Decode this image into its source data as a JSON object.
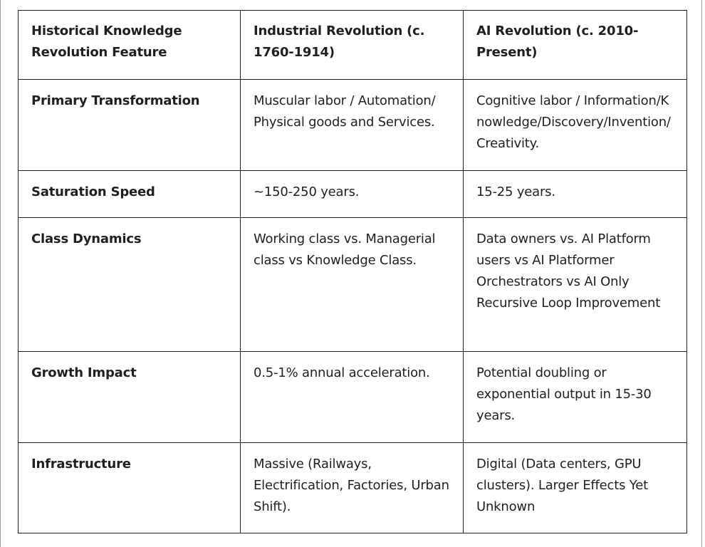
{
  "table": {
    "header": {
      "feature": "Historical Knowledge Revolution Feature",
      "industrial": "Industrial Revolution (c. 1760-1914)",
      "ai": "AI Revolution (c. 2010-Present)"
    },
    "rows": [
      {
        "feature": "Primary Transformation",
        "industrial": "Muscular labor / Automation/ Physical goods and Services.",
        "ai": "Cognitive labor / Information/Knowledge/Discovery/Invention/Creativity."
      },
      {
        "feature": "Saturation Speed",
        "industrial": "~150-250 years.",
        "ai": "15-25 years."
      },
      {
        "feature": "Class Dynamics",
        "industrial": "Working class vs. Managerial class vs Knowledge Class.",
        "ai": "Data owners vs. AI Platform users vs AI Platformer Orchestrators vs AI Only Recursive Loop Improvement"
      },
      {
        "feature": "Growth Impact",
        "industrial": "0.5-1% annual acceleration.",
        "ai": "Potential doubling or exponential  output in 15-30 years."
      },
      {
        "feature": "Infrastructure",
        "industrial": "Massive (Railways, Electrification, Factories, Urban Shift).",
        "ai": "Digital (Data centers, GPU clusters). Larger Effects Yet Unknown"
      }
    ]
  }
}
